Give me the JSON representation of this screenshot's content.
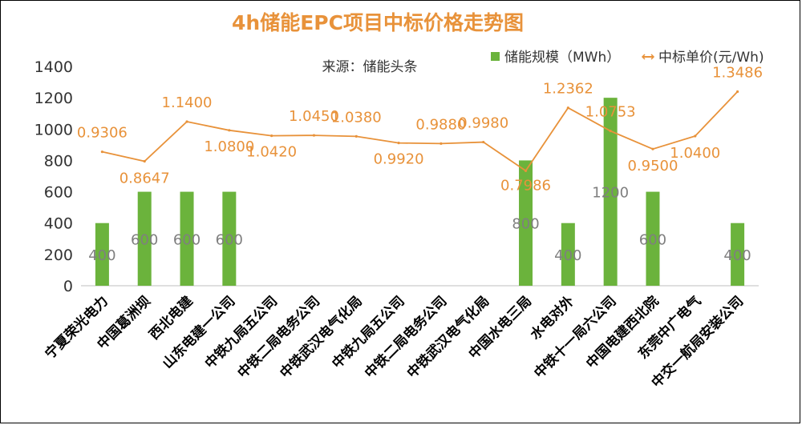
{
  "chart_data": {
    "type": "bar+line",
    "title": "4h储能EPC项目中标价格走势图",
    "subtitle": "来源：储能头条",
    "categories": [
      "宁夏荣光电力",
      "中国葛洲坝",
      "西北电建",
      "山东电建一公司",
      "中铁九局五公司",
      "中铁二局电务公司",
      "中铁武汉电气化局",
      "中铁九局五公司",
      "中铁二局电务公司",
      "中铁武汉电气化局",
      "中国水电三局",
      "水电对外",
      "中铁十一局六公司",
      "中国电建西北院",
      "东莞中广电气",
      "中交一航局安装公司"
    ],
    "series": [
      {
        "name": "储能规模（MWh）",
        "type": "bar",
        "color": "#6BB33C",
        "values": [
          400,
          600,
          600,
          600,
          null,
          null,
          null,
          null,
          null,
          null,
          800,
          400,
          1200,
          600,
          null,
          400
        ],
        "labels": [
          "400",
          "600",
          "600",
          "600",
          "",
          "",
          "",
          "",
          "",
          "",
          "800",
          "400",
          "1200",
          "600",
          "",
          "400"
        ]
      },
      {
        "name": "中标单价(元/Wh)",
        "type": "line",
        "color": "#E8923A",
        "values": [
          0.9306,
          0.8647,
          1.14,
          1.08,
          1.042,
          1.045,
          1.038,
          0.992,
          0.988,
          0.998,
          0.7986,
          1.2362,
          1.0753,
          0.95,
          1.04,
          1.3486
        ],
        "labels": [
          "0.9306",
          "0.8647",
          "1.1400",
          "1.0800",
          "1.0420",
          "1.0450",
          "1.0380",
          "0.9920",
          "0.9880",
          "0.9980",
          "0.7986",
          "1.2362",
          "1.0753",
          "0.9500",
          "1.0400",
          "1.3486"
        ]
      }
    ],
    "y_axis": {
      "min": 0,
      "max": 1400,
      "ticks": [
        "0",
        "200",
        "400",
        "600",
        "800",
        "1000",
        "1200",
        "1400"
      ]
    },
    "legend_position": "top-right"
  }
}
